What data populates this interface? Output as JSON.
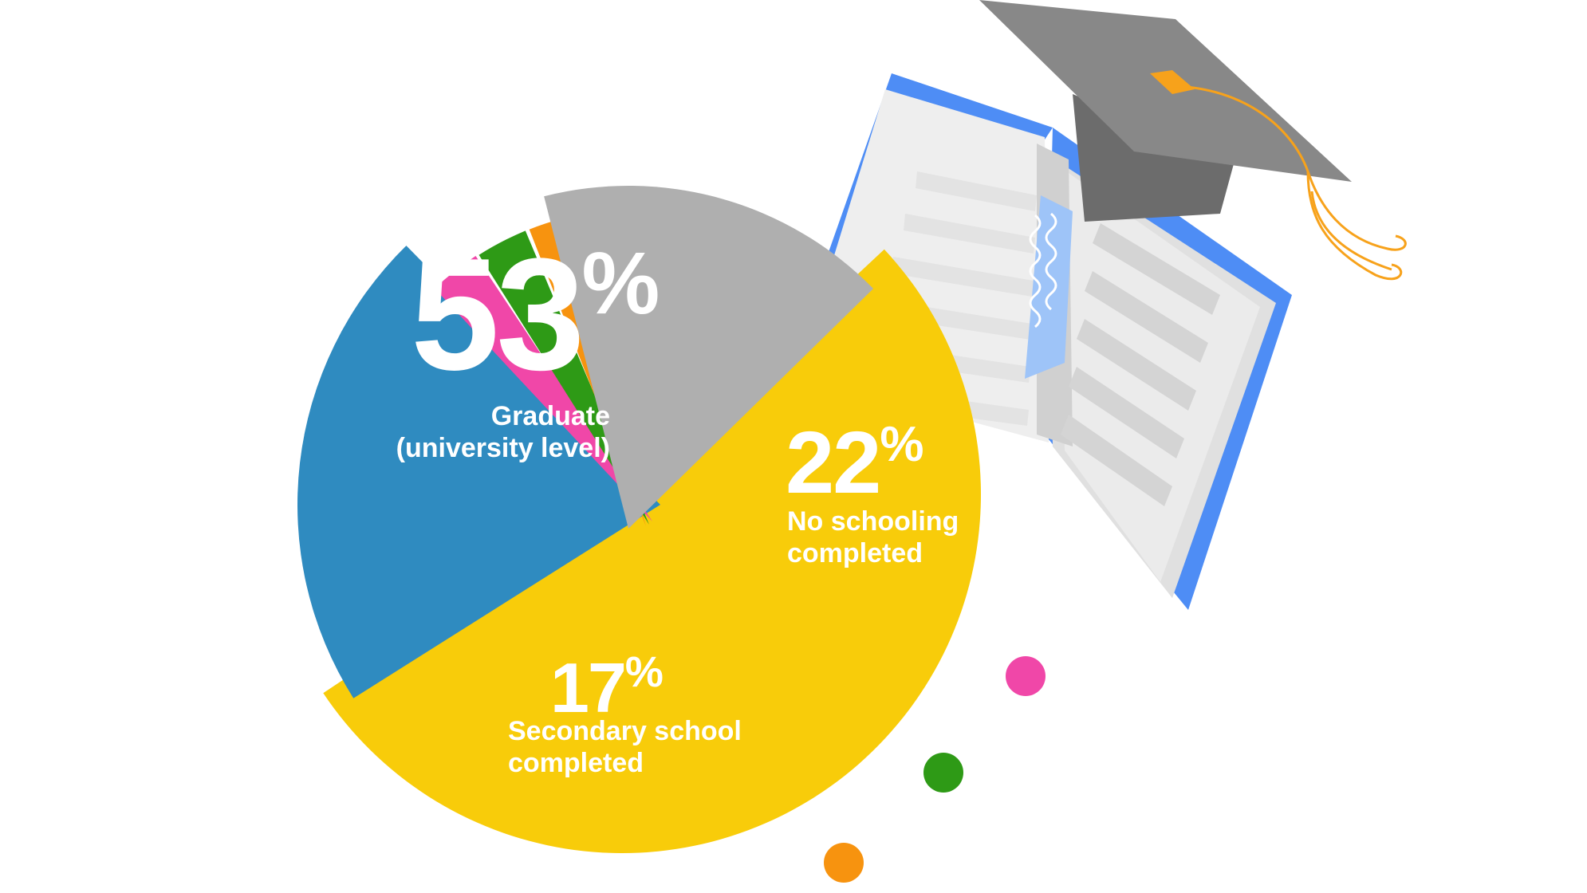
{
  "chart_data": {
    "type": "pie",
    "slices": [
      {
        "key": "graduate",
        "value": 53,
        "label_lines": [
          "Graduate",
          "(university level)"
        ],
        "pct_text": "53",
        "color": "#F8CC0A"
      },
      {
        "key": "none",
        "value": 22,
        "label_lines": [
          "No schooling",
          "completed"
        ],
        "pct_text": "22",
        "color": "#2F8BC0"
      },
      {
        "key": "pink",
        "value": 3,
        "label_lines": [],
        "pct_text": "",
        "color": "#F047A8"
      },
      {
        "key": "green",
        "value": 3,
        "label_lines": [],
        "pct_text": "",
        "color": "#2E9A16"
      },
      {
        "key": "orange",
        "value": 2,
        "label_lines": [],
        "pct_text": "",
        "color": "#F7930F"
      },
      {
        "key": "secondary",
        "value": 17,
        "label_lines": [
          "Secondary school",
          "completed"
        ],
        "pct_text": "17",
        "color": "#AFAFAF"
      }
    ],
    "percent_sign": "%"
  },
  "colors": {
    "book_cover": "#4E8DF5",
    "cap": "#888888",
    "tassel": "#F7A21B"
  },
  "icons": [
    "open-book-icon",
    "graduation-cap-icon"
  ]
}
